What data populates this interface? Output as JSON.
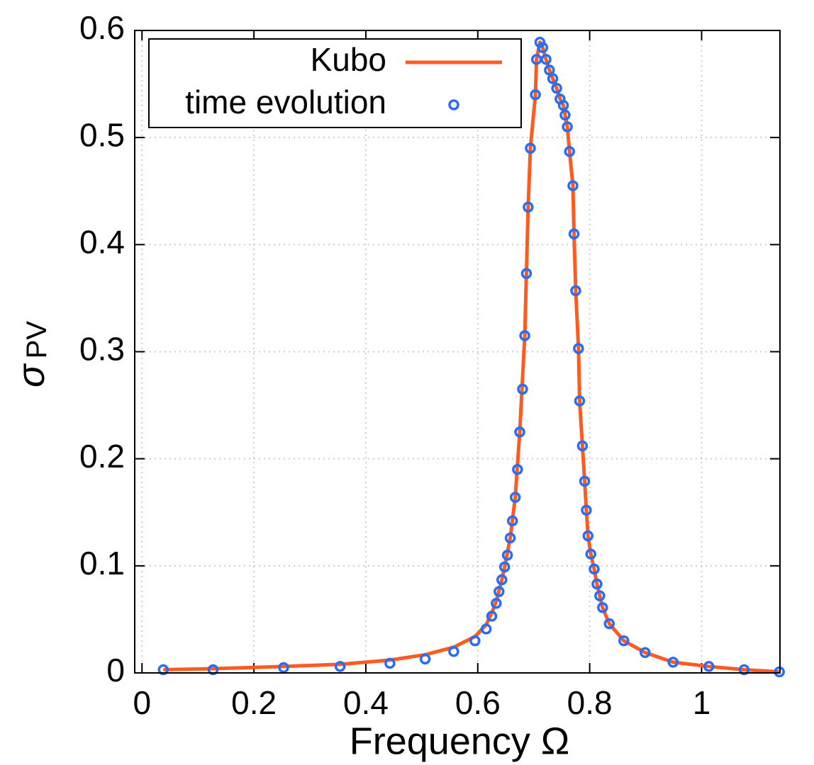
{
  "chart_data": {
    "type": "line_scatter",
    "xlabel": "Frequency Ω",
    "ylabel": "σ",
    "ylabel_sub": "PV",
    "xlim": [
      -0.013,
      1.14
    ],
    "ylim": [
      0,
      0.6
    ],
    "xticks": [
      0,
      0.2,
      0.4,
      0.6,
      0.8,
      1
    ],
    "yticks": [
      0,
      0.1,
      0.2,
      0.3,
      0.4,
      0.5,
      0.6
    ],
    "grid": true,
    "legend": "upper left",
    "series": [
      {
        "name": "Kubo",
        "kind": "line",
        "color": "#ff5a1f",
        "x": [
          0.038,
          0.127,
          0.253,
          0.354,
          0.443,
          0.506,
          0.557,
          0.595,
          0.615,
          0.625,
          0.633,
          0.643,
          0.648,
          0.658,
          0.667,
          0.675,
          0.684,
          0.69,
          0.694,
          0.703,
          0.705,
          0.711,
          0.716,
          0.722,
          0.728,
          0.734,
          0.741,
          0.747,
          0.753,
          0.756,
          0.76,
          0.764,
          0.77,
          0.772,
          0.775,
          0.78,
          0.782,
          0.787,
          0.791,
          0.794,
          0.797,
          0.802,
          0.808,
          0.813,
          0.818,
          0.823,
          0.835,
          0.861,
          0.899,
          0.949,
          1.013,
          1.076,
          1.139
        ],
        "values": [
          0.003,
          0.004,
          0.006,
          0.008,
          0.012,
          0.017,
          0.024,
          0.034,
          0.045,
          0.056,
          0.067,
          0.087,
          0.099,
          0.126,
          0.164,
          0.225,
          0.315,
          0.435,
          0.49,
          0.54,
          0.573,
          0.589,
          0.584,
          0.573,
          0.563,
          0.555,
          0.546,
          0.536,
          0.53,
          0.521,
          0.51,
          0.487,
          0.455,
          0.41,
          0.357,
          0.303,
          0.254,
          0.212,
          0.179,
          0.152,
          0.128,
          0.111,
          0.097,
          0.083,
          0.072,
          0.061,
          0.046,
          0.03,
          0.019,
          0.01,
          0.006,
          0.003,
          0.001
        ]
      },
      {
        "name": "time evolution",
        "kind": "scatter",
        "color": "#2a6df4",
        "x": [
          0.038,
          0.127,
          0.253,
          0.354,
          0.443,
          0.506,
          0.557,
          0.595,
          0.615,
          0.625,
          0.633,
          0.638,
          0.643,
          0.648,
          0.653,
          0.658,
          0.662,
          0.667,
          0.671,
          0.675,
          0.68,
          0.684,
          0.687,
          0.69,
          0.694,
          0.703,
          0.705,
          0.711,
          0.716,
          0.722,
          0.728,
          0.734,
          0.741,
          0.747,
          0.753,
          0.756,
          0.76,
          0.764,
          0.77,
          0.772,
          0.775,
          0.78,
          0.782,
          0.787,
          0.791,
          0.794,
          0.797,
          0.802,
          0.808,
          0.813,
          0.818,
          0.823,
          0.835,
          0.861,
          0.899,
          0.949,
          1.013,
          1.076,
          1.139
        ],
        "values": [
          0.003,
          0.003,
          0.005,
          0.006,
          0.009,
          0.013,
          0.02,
          0.03,
          0.041,
          0.053,
          0.065,
          0.076,
          0.087,
          0.099,
          0.11,
          0.126,
          0.142,
          0.164,
          0.19,
          0.225,
          0.265,
          0.315,
          0.373,
          0.435,
          0.49,
          0.54,
          0.573,
          0.589,
          0.584,
          0.573,
          0.563,
          0.555,
          0.546,
          0.536,
          0.53,
          0.521,
          0.51,
          0.487,
          0.455,
          0.41,
          0.357,
          0.303,
          0.254,
          0.212,
          0.179,
          0.152,
          0.128,
          0.111,
          0.097,
          0.083,
          0.072,
          0.061,
          0.046,
          0.03,
          0.019,
          0.01,
          0.006,
          0.003,
          0.001
        ]
      }
    ]
  }
}
